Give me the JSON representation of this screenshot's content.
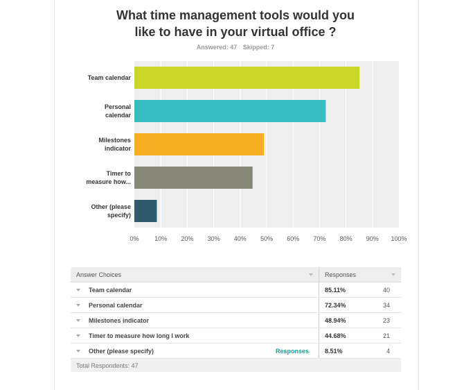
{
  "survey": {
    "title_line1": "What time management tools would you",
    "title_line2": "like to have in your virtual office ?",
    "answered": "Answered: 47",
    "skipped": "Skipped: 7"
  },
  "chart_data": {
    "type": "bar",
    "orientation": "horizontal",
    "categories": [
      [
        "Team calendar"
      ],
      [
        "Personal",
        "calendar"
      ],
      [
        "Milestones",
        "indicator"
      ],
      [
        "Timer to",
        "measure how..."
      ],
      [
        "Other (please",
        "specify)"
      ]
    ],
    "values": [
      85.11,
      72.34,
      48.94,
      44.68,
      8.51
    ],
    "colors": [
      "#cbd52a",
      "#34bec1",
      "#f7ae22",
      "#878776",
      "#2e5b6b"
    ],
    "xlim": [
      0,
      100
    ],
    "ticks": [
      "0%",
      "10%",
      "20%",
      "30%",
      "40%",
      "50%",
      "60%",
      "70%",
      "80%",
      "90%",
      "100%"
    ],
    "grid": true
  },
  "table": {
    "header_choice": "Answer Choices",
    "header_responses": "Responses",
    "rows": [
      {
        "choice": "Team calendar",
        "pct": "85.11%",
        "count": "40",
        "link": ""
      },
      {
        "choice": "Personal calendar",
        "pct": "72.34%",
        "count": "34",
        "link": ""
      },
      {
        "choice": "Milestones indicator",
        "pct": "48.94%",
        "count": "23",
        "link": ""
      },
      {
        "choice": "Timer to measure how long I work",
        "pct": "44.68%",
        "count": "21",
        "link": ""
      },
      {
        "choice": "Other (please specify)",
        "pct": "8.51%",
        "count": "4",
        "link": "Responses"
      }
    ],
    "total": "Total Respondents: 47"
  },
  "colors": {
    "plot_bg": "#eeeeee",
    "grid": "#ffffff",
    "link": "#1b9b9b"
  }
}
